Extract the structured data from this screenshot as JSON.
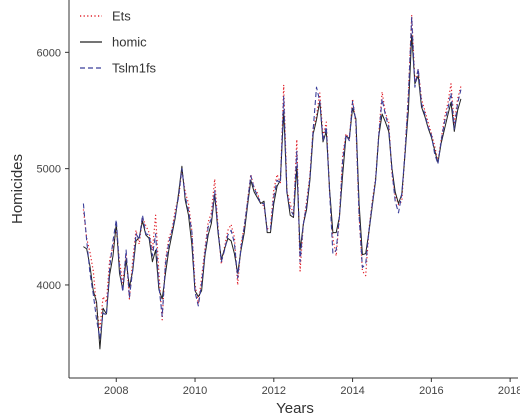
{
  "chart_data": {
    "type": "line",
    "title": "",
    "xlabel": "Years",
    "ylabel": "Homicides",
    "xlim": [
      2006.8,
      2018.2
    ],
    "ylim": [
      3200,
      6450
    ],
    "xticks": [
      2008,
      2010,
      2012,
      2014,
      2016,
      2018
    ],
    "xtick_labels": [
      "2008",
      "2010",
      "2012",
      "2014",
      "2016",
      "2018"
    ],
    "yticks": [
      4000,
      5000,
      6000
    ],
    "ytick_labels": [
      "4000",
      "5000",
      "6000"
    ],
    "grid": false,
    "legend_position": "top-left",
    "x_start": "2007-03",
    "x_frequency": "monthly",
    "series": [
      {
        "name": "Ets",
        "color": "#e0202a",
        "dash": "dotted",
        "values": [
          4650,
          4400,
          4280,
          4120,
          3800,
          3620,
          3900,
          3850,
          4220,
          4330,
          4480,
          4200,
          4020,
          4260,
          3880,
          4210,
          4470,
          4350,
          4580,
          4510,
          4450,
          4300,
          4600,
          4100,
          3700,
          4210,
          4400,
          4480,
          4650,
          4750,
          4990,
          4800,
          4700,
          4470,
          4010,
          3840,
          4060,
          4310,
          4540,
          4620,
          4910,
          4500,
          4180,
          4330,
          4470,
          4520,
          4410,
          4000,
          4350,
          4510,
          4720,
          4950,
          4840,
          4790,
          4700,
          4680,
          4480,
          4500,
          4820,
          4950,
          4880,
          5720,
          4810,
          4700,
          4600,
          5250,
          4120,
          4520,
          4720,
          4940,
          5350,
          5450,
          5650,
          5280,
          5400,
          4800,
          4400,
          4250,
          4600,
          5120,
          5300,
          5250,
          5600,
          5380,
          4600,
          4120,
          4080,
          4480,
          4720,
          4920,
          5300,
          5660,
          5480,
          5400,
          4950,
          4770,
          4690,
          4720,
          5160,
          5650,
          6320,
          5750,
          5850,
          5600,
          5500,
          5400,
          5300,
          5200,
          5060,
          5250,
          5440,
          5560,
          5730,
          5380,
          5600,
          5710
        ]
      },
      {
        "name": "homic",
        "color": "#222222",
        "dash": "solid",
        "values": [
          4330,
          4310,
          4160,
          3950,
          3850,
          3450,
          3800,
          3750,
          4090,
          4250,
          4530,
          4100,
          3960,
          4220,
          3980,
          4120,
          4380,
          4410,
          4550,
          4430,
          4400,
          4200,
          4300,
          3960,
          3880,
          4100,
          4300,
          4440,
          4580,
          4790,
          5020,
          4730,
          4600,
          4350,
          3950,
          3900,
          3950,
          4250,
          4430,
          4530,
          4780,
          4450,
          4220,
          4310,
          4400,
          4380,
          4270,
          4100,
          4300,
          4450,
          4680,
          4900,
          4800,
          4750,
          4700,
          4720,
          4450,
          4450,
          4700,
          4850,
          4900,
          5500,
          4800,
          4600,
          4580,
          5020,
          4300,
          4520,
          4650,
          4900,
          5300,
          5420,
          5580,
          5230,
          5320,
          4820,
          4450,
          4450,
          4590,
          4950,
          5280,
          5260,
          5520,
          5430,
          4700,
          4260,
          4270,
          4460,
          4680,
          4900,
          5280,
          5470,
          5400,
          5320,
          5000,
          4800,
          4700,
          4780,
          5130,
          5500,
          6150,
          5730,
          5800,
          5530,
          5450,
          5350,
          5270,
          5160,
          5050,
          5220,
          5340,
          5460,
          5570,
          5320,
          5500,
          5600
        ]
      },
      {
        "name": "Tslm1fs",
        "color": "#3b3f9a",
        "dash": "dashed",
        "values": [
          4700,
          4380,
          4100,
          3920,
          3700,
          3540,
          3760,
          3740,
          4150,
          4380,
          4560,
          4150,
          3940,
          4300,
          3890,
          4130,
          4440,
          4390,
          4600,
          4440,
          4430,
          4250,
          4440,
          3990,
          3730,
          4180,
          4360,
          4470,
          4600,
          4760,
          5000,
          4760,
          4640,
          4460,
          3940,
          3820,
          4010,
          4270,
          4500,
          4570,
          4810,
          4480,
          4200,
          4300,
          4430,
          4470,
          4360,
          4060,
          4320,
          4500,
          4710,
          4940,
          4830,
          4770,
          4700,
          4700,
          4470,
          4480,
          4760,
          4900,
          4880,
          5620,
          4790,
          4650,
          4600,
          5150,
          4200,
          4520,
          4690,
          4920,
          5340,
          5700,
          5580,
          5240,
          5360,
          4800,
          4270,
          4300,
          4590,
          5070,
          5290,
          5240,
          5580,
          5400,
          4600,
          4150,
          4180,
          4470,
          4700,
          4900,
          5290,
          5600,
          5460,
          5360,
          4980,
          4720,
          4620,
          4780,
          5150,
          5620,
          6300,
          5700,
          5860,
          5560,
          5470,
          5360,
          5290,
          5130,
          5040,
          5240,
          5400,
          5510,
          5650,
          5340,
          5560,
          5680
        ]
      }
    ]
  }
}
